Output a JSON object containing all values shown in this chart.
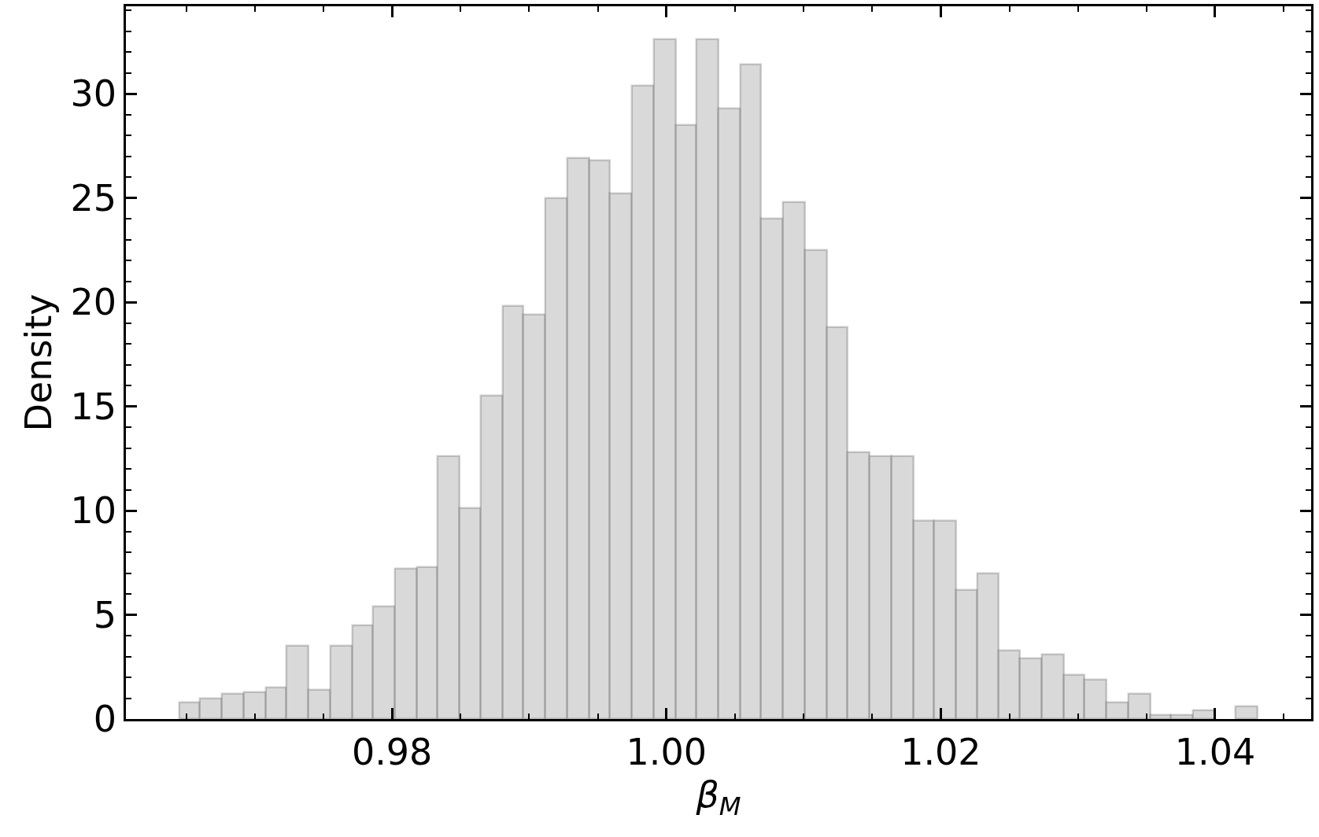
{
  "chart_data": {
    "type": "histogram",
    "xlabel": "β$_{M}$",
    "ylabel": "Density",
    "bins": [
      0.9645,
      0.966,
      0.9676,
      0.9692,
      0.9708,
      0.9723,
      0.9739,
      0.9755,
      0.9771,
      0.9786,
      0.9802,
      0.9818,
      0.9833,
      0.9849,
      0.9865,
      0.9881,
      0.9896,
      0.9912,
      0.9928,
      0.9944,
      0.9959,
      0.9975,
      0.9991,
      1.0007,
      1.0022,
      1.0038,
      1.0054,
      1.0069,
      1.0085,
      1.0101,
      1.0117,
      1.0132,
      1.0148,
      1.0164,
      1.018,
      1.0195,
      1.0211,
      1.0227,
      1.0242,
      1.0258,
      1.0274,
      1.029,
      1.0305,
      1.0321,
      1.0337,
      1.0353,
      1.0368,
      1.0384,
      1.04,
      1.0415,
      1.0431
    ],
    "values": [
      0.8,
      1.0,
      1.2,
      1.3,
      1.5,
      3.5,
      1.4,
      3.5,
      4.5,
      5.4,
      7.2,
      7.3,
      12.6,
      10.1,
      15.5,
      19.8,
      19.4,
      25.0,
      26.9,
      26.8,
      25.2,
      30.4,
      32.6,
      28.5,
      32.6,
      29.3,
      31.4,
      24.0,
      24.8,
      22.5,
      18.8,
      12.8,
      12.6,
      12.6,
      9.5,
      9.5,
      6.2,
      7.0,
      3.3,
      2.9,
      3.1,
      2.1,
      1.9,
      0.8,
      1.2,
      0.2,
      0.2,
      0.4,
      0.0,
      0.6
    ],
    "color": "#d9d9d9",
    "xlim": [
      0.9606,
      1.047
    ],
    "ylim": [
      0,
      34.2
    ],
    "xticks": [
      {
        "value": 0.98,
        "label": "0.98"
      },
      {
        "value": 1.0,
        "label": "1.00"
      },
      {
        "value": 1.02,
        "label": "1.02"
      },
      {
        "value": 1.04,
        "label": "1.04"
      }
    ],
    "yticks": [
      0,
      5,
      10,
      15,
      20,
      25,
      30
    ]
  }
}
